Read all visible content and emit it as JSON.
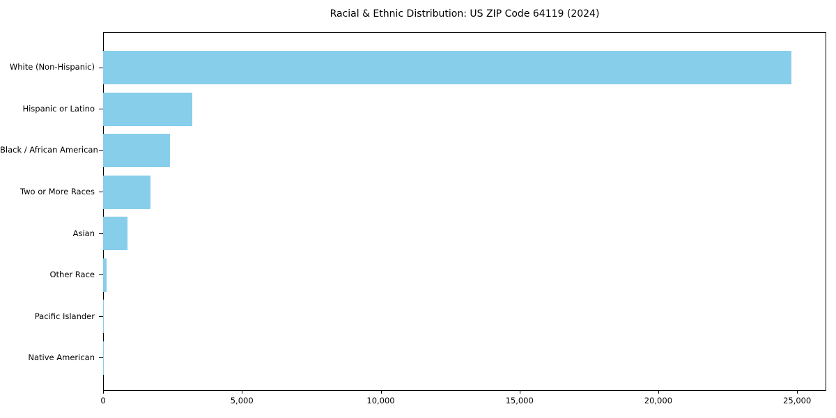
{
  "chart_data": {
    "type": "bar",
    "orientation": "horizontal",
    "title": "Racial & Ethnic Distribution: US ZIP Code 64119 (2024)",
    "categories": [
      "White (Non-Hispanic)",
      "Hispanic or Latino",
      "Black / African American",
      "Two or More Races",
      "Asian",
      "Other Race",
      "Pacific Islander",
      "Native American"
    ],
    "values": [
      24800,
      3200,
      2420,
      1700,
      880,
      125,
      30,
      20
    ],
    "xlabel": "",
    "ylabel": "",
    "xlim": [
      0,
      26000
    ],
    "xticks": [
      0,
      5000,
      10000,
      15000,
      20000,
      25000
    ],
    "xtick_labels": [
      "0",
      "5,000",
      "10,000",
      "15,000",
      "20,000",
      "25,000"
    ],
    "bar_color": "#87CEEB",
    "axis_color": "#000000",
    "text_color": "#000000",
    "background_color": "#ffffff",
    "grid": false,
    "legend": null
  }
}
